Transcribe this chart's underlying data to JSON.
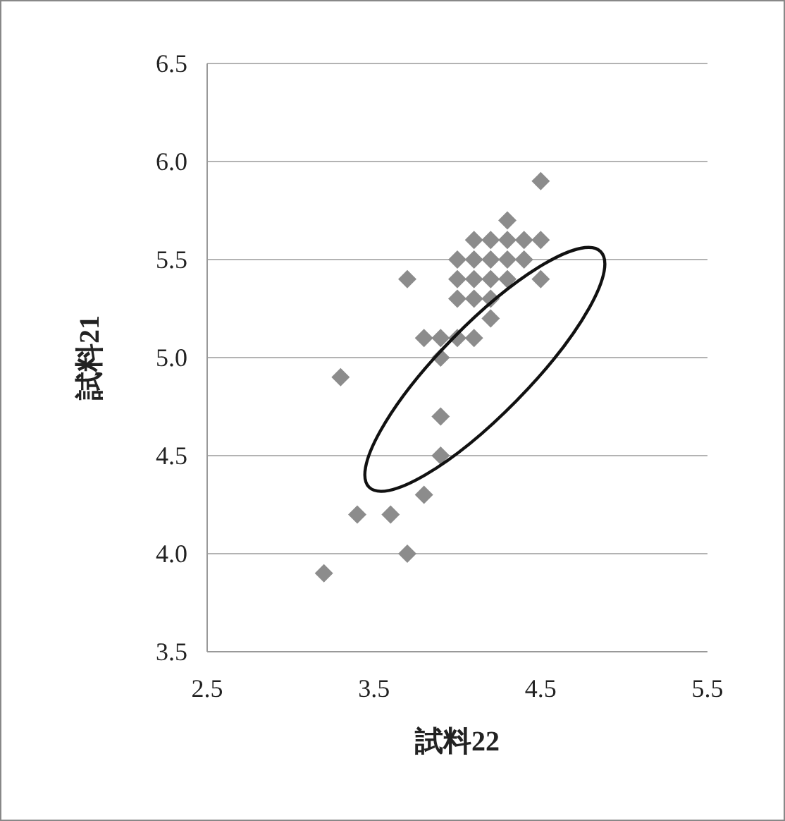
{
  "chart_data": {
    "type": "scatter",
    "xlabel": "試料22",
    "ylabel": "試料21",
    "x": [
      3.2,
      3.3,
      3.4,
      3.6,
      3.7,
      3.7,
      3.8,
      3.8,
      3.9,
      3.9,
      3.9,
      3.9,
      4.0,
      4.0,
      4.0,
      4.0,
      4.1,
      4.1,
      4.1,
      4.1,
      4.1,
      4.2,
      4.2,
      4.2,
      4.2,
      4.2,
      4.3,
      4.3,
      4.3,
      4.3,
      4.4,
      4.4,
      4.5,
      4.5,
      4.5
    ],
    "values": [
      3.9,
      4.9,
      4.2,
      4.2,
      4.0,
      5.4,
      4.3,
      5.1,
      4.5,
      4.7,
      5.0,
      5.1,
      5.1,
      5.3,
      5.4,
      5.5,
      5.1,
      5.3,
      5.4,
      5.5,
      5.6,
      5.2,
      5.3,
      5.4,
      5.5,
      5.6,
      5.4,
      5.5,
      5.6,
      5.7,
      5.5,
      5.6,
      5.4,
      5.6,
      5.9
    ],
    "color": "#8c8c8c",
    "marker": "diamond",
    "xlim": [
      2.5,
      5.5
    ],
    "ylim": [
      3.5,
      6.5
    ],
    "xticks": [
      2.5,
      3.5,
      4.5,
      5.5
    ],
    "yticks": [
      3.5,
      {
        "value": 4,
        "label": "4.0"
      },
      4.5,
      {
        "value": 5,
        "label": "5.0"
      },
      5.5,
      {
        "value": 6,
        "label": "6.0"
      },
      6.5
    ],
    "grid": "y"
  }
}
